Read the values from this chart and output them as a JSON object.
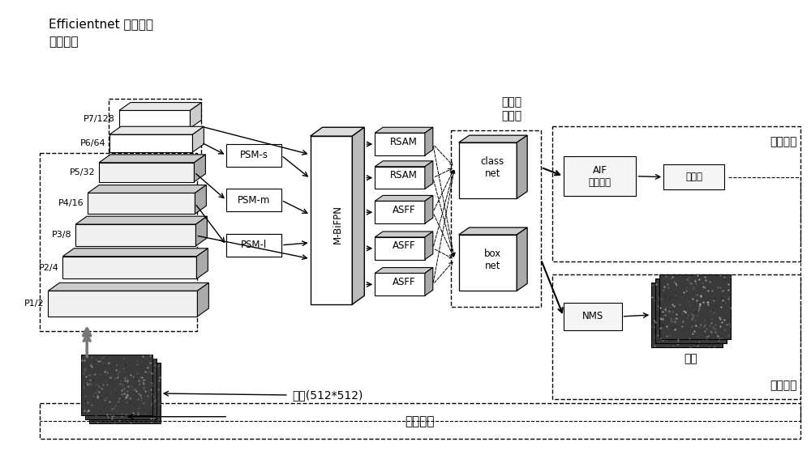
{
  "bg_color": "#ffffff",
  "fig_width": 10.0,
  "fig_height": 5.67,
  "text_efficientnet_line1": "Efficientnet 主干网络",
  "text_efficientnet_line2": "和下采样",
  "text_classify": "分类回\n归网络",
  "text_train": "训练阶段",
  "text_test": "测试阶段",
  "text_input": "输入(512*512)",
  "text_iter": "迭代训练",
  "text_output": "输出",
  "layers_labels": [
    "P7/128",
    "P6/64",
    "P5/32",
    "P4/16",
    "P3/8",
    "P2/4",
    "P1/2"
  ],
  "psm_labels": [
    "PSM-s",
    "PSM-m",
    "PSM-l"
  ],
  "rsam_labels": [
    "RSAM",
    "RSAM"
  ],
  "asff_labels": [
    "ASFF",
    "ASFF",
    "ASFF"
  ],
  "class_net_label": "class\nnet",
  "box_net_label": "box\nnet",
  "mbifpn_label": "M-BiFPN",
  "aif_label": "AIF\n损失函数",
  "optimizer_label": "优化器",
  "nms_label": "NMS"
}
